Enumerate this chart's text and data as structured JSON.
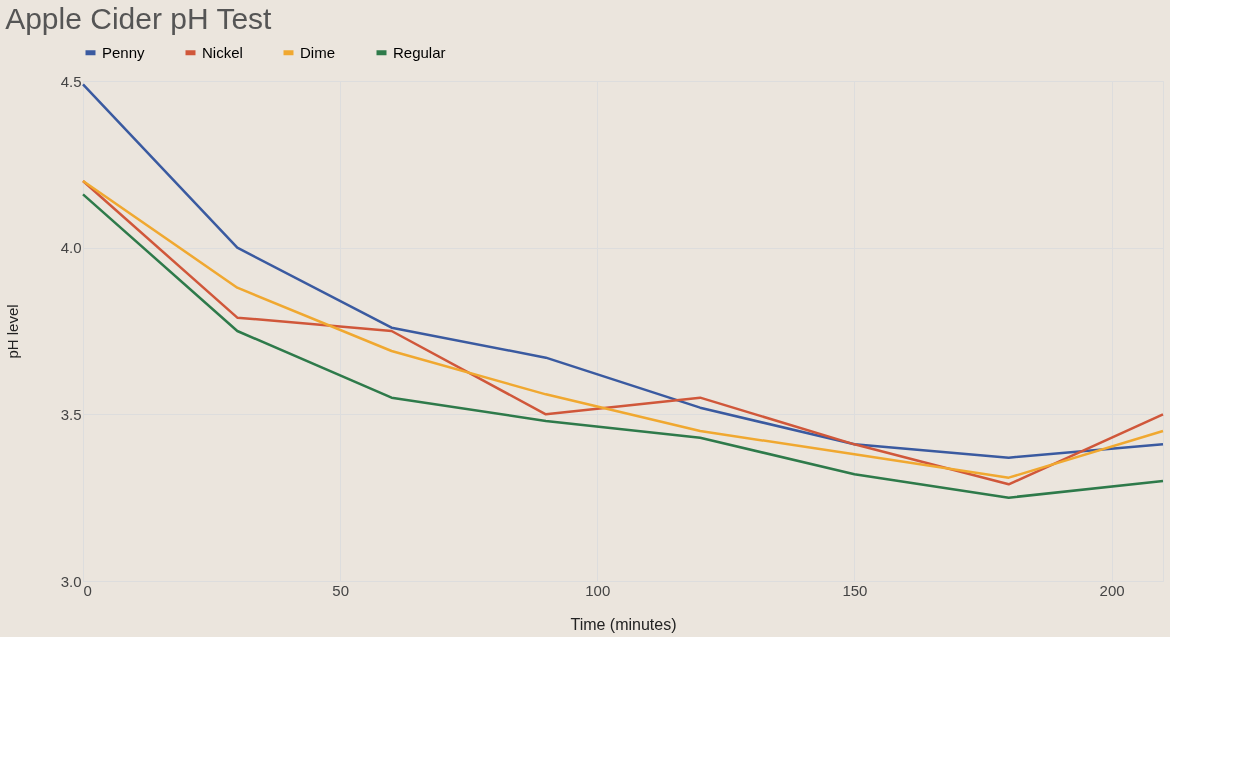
{
  "chart_data": {
    "type": "line",
    "title": "Apple Cider pH Test",
    "xlabel": "Time (minutes)",
    "ylabel": "pH level",
    "x": [
      0,
      30,
      60,
      90,
      120,
      150,
      180,
      210
    ],
    "series": [
      {
        "name": "Penny",
        "color": "#3a5aa0",
        "values": [
          4.49,
          4.0,
          3.76,
          3.67,
          3.52,
          3.41,
          3.37,
          3.41
        ]
      },
      {
        "name": "Nickel",
        "color": "#d0573a",
        "values": [
          4.2,
          3.79,
          3.75,
          3.5,
          3.55,
          3.41,
          3.29,
          3.5
        ]
      },
      {
        "name": "Dime",
        "color": "#f0a830",
        "values": [
          4.2,
          3.88,
          3.69,
          3.56,
          3.45,
          3.38,
          3.31,
          3.45
        ]
      },
      {
        "name": "Regular",
        "color": "#2e7a4a",
        "values": [
          4.16,
          3.75,
          3.55,
          3.48,
          3.43,
          3.32,
          3.25,
          3.3
        ]
      }
    ],
    "xlim": [
      0,
      210
    ],
    "xticks": [
      0,
      50,
      100,
      150,
      200
    ],
    "ylim": [
      3.0,
      4.5
    ],
    "yticks": [
      {
        "value": 3.0,
        "label": "3.0"
      },
      {
        "value": 3.5,
        "label": "3.5"
      },
      {
        "value": 4.0,
        "label": "4.0"
      },
      {
        "value": 4.5,
        "label": "4.5"
      }
    ],
    "grid": true,
    "legend": "top",
    "marker": "none",
    "line_style": "solid"
  }
}
